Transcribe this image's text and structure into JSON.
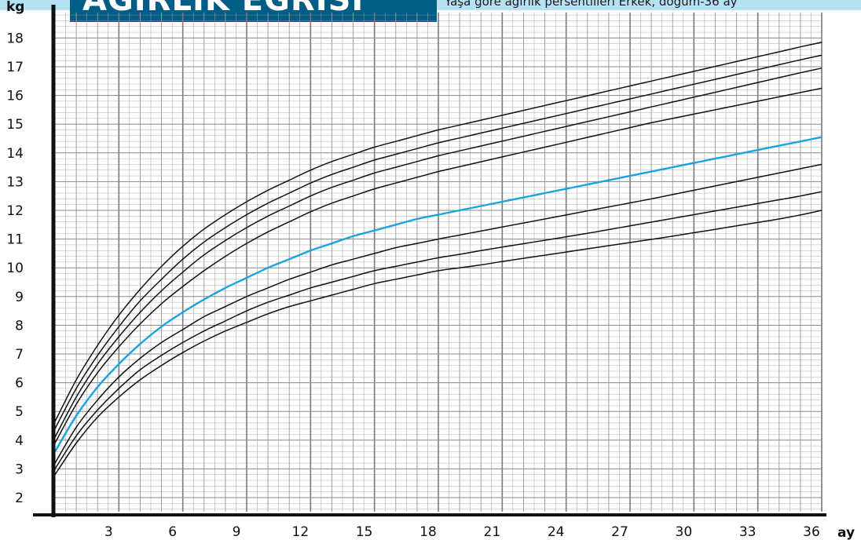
{
  "header": {
    "title": "AĞIRLIK EĞRİSİ",
    "subtitle": "Yaşa göre ağırlık persentilleri Erkek, doğum-36 ay"
  },
  "colors": {
    "band": "#b6e1f2",
    "title_bg": "#005d86",
    "median": "#1aa3e0",
    "curve": "#111111",
    "grid": "#9a9a9a"
  },
  "chart_data": {
    "type": "line",
    "title": "AĞIRLIK EĞRİSİ",
    "subtitle": "Yaşa göre ağırlık persentilleri Erkek, doğum-36 ay",
    "xlabel": "ay",
    "ylabel": "kg",
    "xlim": [
      0,
      36
    ],
    "ylim": [
      1.5,
      19
    ],
    "x_ticks": [
      3,
      6,
      9,
      12,
      15,
      18,
      21,
      24,
      27,
      30,
      33,
      36
    ],
    "y_ticks": [
      2,
      3,
      4,
      5,
      6,
      7,
      8,
      9,
      10,
      11,
      12,
      13,
      14,
      15,
      16,
      17,
      18
    ],
    "grid": true,
    "x": [
      0,
      1,
      2,
      3,
      4,
      5,
      6,
      7,
      8,
      9,
      10,
      11,
      12,
      13,
      14,
      15,
      16,
      17,
      18,
      19,
      20,
      21,
      22,
      23,
      24,
      25,
      26,
      27,
      28,
      29,
      30,
      31,
      32,
      33,
      34,
      35,
      36
    ],
    "series": [
      {
        "highlight": false,
        "values": [
          2.8,
          3.9,
          4.8,
          5.5,
          6.1,
          6.6,
          7.05,
          7.45,
          7.8,
          8.1,
          8.4,
          8.65,
          8.85,
          9.05,
          9.25,
          9.45,
          9.6,
          9.75,
          9.9,
          10.0,
          10.1,
          10.22,
          10.33,
          10.44,
          10.55,
          10.66,
          10.77,
          10.88,
          10.99,
          11.1,
          11.22,
          11.34,
          11.46,
          11.58,
          11.7,
          11.84,
          12.0
        ]
      },
      {
        "highlight": false,
        "values": [
          3.0,
          4.15,
          5.05,
          5.8,
          6.45,
          6.95,
          7.4,
          7.8,
          8.15,
          8.5,
          8.8,
          9.05,
          9.3,
          9.5,
          9.7,
          9.9,
          10.05,
          10.2,
          10.35,
          10.47,
          10.6,
          10.72,
          10.84,
          10.96,
          11.08,
          11.2,
          11.33,
          11.46,
          11.59,
          11.72,
          11.85,
          11.98,
          12.11,
          12.24,
          12.37,
          12.5,
          12.65
        ]
      },
      {
        "highlight": false,
        "values": [
          3.2,
          4.45,
          5.4,
          6.2,
          6.85,
          7.4,
          7.85,
          8.3,
          8.65,
          9.0,
          9.3,
          9.6,
          9.85,
          10.1,
          10.3,
          10.5,
          10.7,
          10.85,
          11.0,
          11.14,
          11.28,
          11.42,
          11.56,
          11.7,
          11.84,
          11.98,
          12.12,
          12.26,
          12.4,
          12.55,
          12.7,
          12.85,
          13.0,
          13.15,
          13.3,
          13.45,
          13.6
        ]
      },
      {
        "highlight": true,
        "values": [
          3.6,
          4.85,
          5.85,
          6.65,
          7.35,
          7.95,
          8.45,
          8.9,
          9.3,
          9.65,
          10.0,
          10.3,
          10.6,
          10.85,
          11.1,
          11.3,
          11.5,
          11.7,
          11.85,
          12.0,
          12.15,
          12.3,
          12.45,
          12.6,
          12.75,
          12.9,
          13.05,
          13.2,
          13.35,
          13.5,
          13.65,
          13.8,
          13.95,
          14.1,
          14.25,
          14.4,
          14.55
        ]
      },
      {
        "highlight": false,
        "values": [
          3.9,
          5.25,
          6.35,
          7.25,
          8.05,
          8.75,
          9.35,
          9.9,
          10.4,
          10.85,
          11.25,
          11.6,
          11.95,
          12.25,
          12.5,
          12.75,
          12.95,
          13.15,
          13.35,
          13.52,
          13.69,
          13.86,
          14.03,
          14.2,
          14.37,
          14.54,
          14.71,
          14.88,
          15.05,
          15.2,
          15.35,
          15.5,
          15.65,
          15.8,
          15.95,
          16.1,
          16.25
        ]
      },
      {
        "highlight": false,
        "values": [
          4.1,
          5.5,
          6.65,
          7.6,
          8.45,
          9.2,
          9.85,
          10.45,
          10.95,
          11.4,
          11.8,
          12.15,
          12.5,
          12.8,
          13.05,
          13.3,
          13.5,
          13.7,
          13.9,
          14.07,
          14.24,
          14.41,
          14.58,
          14.75,
          14.92,
          15.09,
          15.26,
          15.43,
          15.6,
          15.77,
          15.94,
          16.11,
          16.28,
          16.45,
          16.62,
          16.79,
          16.95
        ]
      },
      {
        "highlight": false,
        "values": [
          4.4,
          5.8,
          6.95,
          7.95,
          8.85,
          9.6,
          10.3,
          10.9,
          11.4,
          11.85,
          12.25,
          12.6,
          12.95,
          13.25,
          13.5,
          13.75,
          13.95,
          14.15,
          14.35,
          14.52,
          14.69,
          14.86,
          15.03,
          15.2,
          15.37,
          15.54,
          15.71,
          15.88,
          16.05,
          16.22,
          16.39,
          16.56,
          16.73,
          16.9,
          17.07,
          17.24,
          17.4
        ]
      },
      {
        "highlight": false,
        "values": [
          4.65,
          6.1,
          7.3,
          8.35,
          9.25,
          10.05,
          10.75,
          11.35,
          11.85,
          12.3,
          12.7,
          13.05,
          13.4,
          13.7,
          13.95,
          14.2,
          14.4,
          14.6,
          14.8,
          14.97,
          15.14,
          15.31,
          15.48,
          15.65,
          15.82,
          15.99,
          16.16,
          16.33,
          16.5,
          16.67,
          16.84,
          17.01,
          17.18,
          17.35,
          17.52,
          17.69,
          17.85
        ]
      }
    ]
  }
}
